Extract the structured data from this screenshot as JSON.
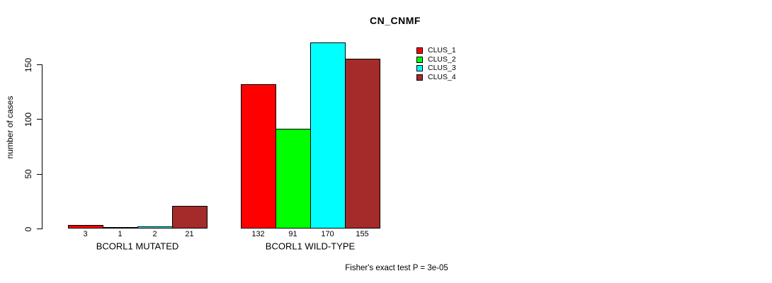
{
  "chart_data": {
    "type": "bar",
    "title": "CN_CNMF",
    "xlabel": "",
    "ylabel": "number of cases",
    "ylim": [
      0,
      175
    ],
    "yticks": [
      "0",
      "50",
      "100",
      "150"
    ],
    "grid": false,
    "legend_position": "top-right-outside",
    "categories": [
      "BCORL1 MUTATED",
      "BCORL1 WILD-TYPE"
    ],
    "series": [
      {
        "name": "CLUS_1",
        "color": "#FF0000",
        "values": [
          3,
          132
        ]
      },
      {
        "name": "CLUS_2",
        "color": "#00FF00",
        "values": [
          1,
          91
        ]
      },
      {
        "name": "CLUS_3",
        "color": "#00FFFF",
        "values": [
          2,
          170
        ]
      },
      {
        "name": "CLUS_4",
        "color": "#A52A2A",
        "values": [
          21,
          155
        ]
      }
    ],
    "bar_value_labels": [
      [
        "3",
        "1",
        "2",
        "21"
      ],
      [
        "132",
        "91",
        "170",
        "155"
      ]
    ],
    "annotation": "Fisher's exact test P = 3e-05",
    "background_color": "#FFFFFF",
    "text_color": "#000000"
  }
}
